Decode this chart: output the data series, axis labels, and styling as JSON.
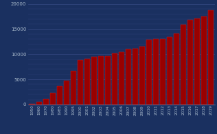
{
  "categories": [
    "1950",
    "1960",
    "1970",
    "1980",
    "1985",
    "1990",
    "1995",
    "2000",
    "2001",
    "2002",
    "2003",
    "2004",
    "2005",
    "2006",
    "2007",
    "2008",
    "2009",
    "2010",
    "2011",
    "2012",
    "2013",
    "2014",
    "2015",
    "2016",
    "2017",
    "2018",
    "2019"
  ],
  "values": [
    80,
    500,
    1100,
    2350,
    3600,
    4700,
    6700,
    8800,
    9100,
    9500,
    9600,
    9700,
    10200,
    10500,
    11000,
    11200,
    11500,
    12900,
    13000,
    13100,
    13400,
    14200,
    15900,
    16900,
    17100,
    17600,
    18800
  ],
  "bar_color": "#990000",
  "bar_edge_color": "#cc2222",
  "background_color": "#1a3060",
  "grid_color": "#5566aa",
  "text_color": "#aabbcc",
  "ylim": [
    0,
    20000
  ],
  "yticks": [
    0,
    5000,
    10000,
    15000,
    20000
  ]
}
